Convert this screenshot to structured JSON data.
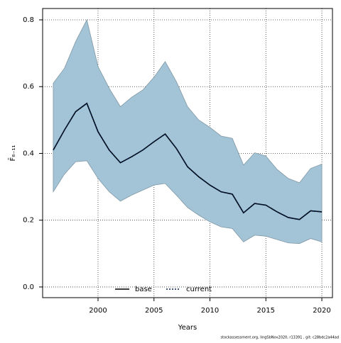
{
  "chart_data": {
    "type": "line",
    "ylabel": "F̄₈₋₁₁",
    "xlabel": "Years",
    "footer": "stockassessment.org, lingSbNov2020, r13391 , git: c28bdc2a44ad",
    "x": [
      1996,
      1997,
      1998,
      1999,
      2000,
      2001,
      2002,
      2003,
      2004,
      2005,
      2006,
      2007,
      2008,
      2009,
      2010,
      2011,
      2012,
      2013,
      2014,
      2015,
      2016,
      2017,
      2018,
      2019,
      2020
    ],
    "band": {
      "color": "#a3c4d6",
      "edge": "#7f97a5",
      "upper": [
        0.61,
        0.655,
        0.735,
        0.8,
        0.66,
        0.595,
        0.54,
        0.568,
        0.59,
        0.628,
        0.675,
        0.615,
        0.54,
        0.5,
        0.478,
        0.452,
        0.445,
        0.365,
        0.402,
        0.392,
        0.352,
        0.325,
        0.312,
        0.355,
        0.368
      ],
      "lower": [
        0.285,
        0.338,
        0.375,
        0.378,
        0.325,
        0.285,
        0.257,
        0.275,
        0.29,
        0.305,
        0.31,
        0.275,
        0.238,
        0.215,
        0.195,
        0.18,
        0.175,
        0.135,
        0.155,
        0.152,
        0.142,
        0.132,
        0.13,
        0.145,
        0.135
      ]
    },
    "series": [
      {
        "name": "base",
        "color": "#000000",
        "dash": "solid",
        "values": [
          0.41,
          0.47,
          0.525,
          0.55,
          0.465,
          0.41,
          0.372,
          0.39,
          0.41,
          0.435,
          0.458,
          0.415,
          0.36,
          0.33,
          0.305,
          0.285,
          0.278,
          0.222,
          0.25,
          0.245,
          0.225,
          0.208,
          0.202,
          0.228,
          0.225
        ]
      },
      {
        "name": "current",
        "color": "#00204d",
        "dash": "dotted",
        "values": [
          0.41,
          0.47,
          0.525,
          0.55,
          0.465,
          0.41,
          0.372,
          0.39,
          0.41,
          0.435,
          0.458,
          0.415,
          0.36,
          0.33,
          0.305,
          0.285,
          0.278,
          0.222,
          0.25,
          0.245,
          0.225,
          0.208,
          0.202,
          0.228,
          0.225
        ]
      }
    ],
    "xlim": [
      1995.05,
      2020.95
    ],
    "xticks": [
      2000,
      2005,
      2010,
      2015,
      2020
    ],
    "ylim": [
      -0.032,
      0.834
    ],
    "yticks": [
      {
        "value": 0,
        "label": "0.0"
      },
      0.2,
      0.4,
      0.6,
      0.8
    ],
    "grid": true,
    "legend": "bottom"
  }
}
